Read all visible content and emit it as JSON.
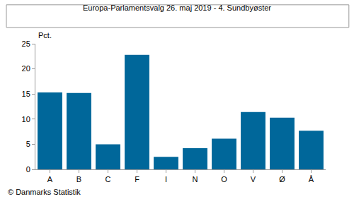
{
  "chart_data": {
    "type": "bar",
    "title": "Europa-Parlamentsvalg 26. maj 2019 - 4. Sundbyøster",
    "y_label": "Pct.",
    "annotations": [
      "© Danmarks Statistik"
    ],
    "categories": [
      "A",
      "B",
      "C",
      "F",
      "I",
      "N",
      "O",
      "V",
      "Ø",
      "Å"
    ],
    "values": [
      15.3,
      15.2,
      5.0,
      22.8,
      2.5,
      4.2,
      6.1,
      11.4,
      10.3,
      7.7
    ],
    "color": "#00679a",
    "ylim": [
      0,
      25
    ],
    "yticks": [
      0,
      5,
      10,
      15,
      20,
      25
    ],
    "grid": false
  }
}
